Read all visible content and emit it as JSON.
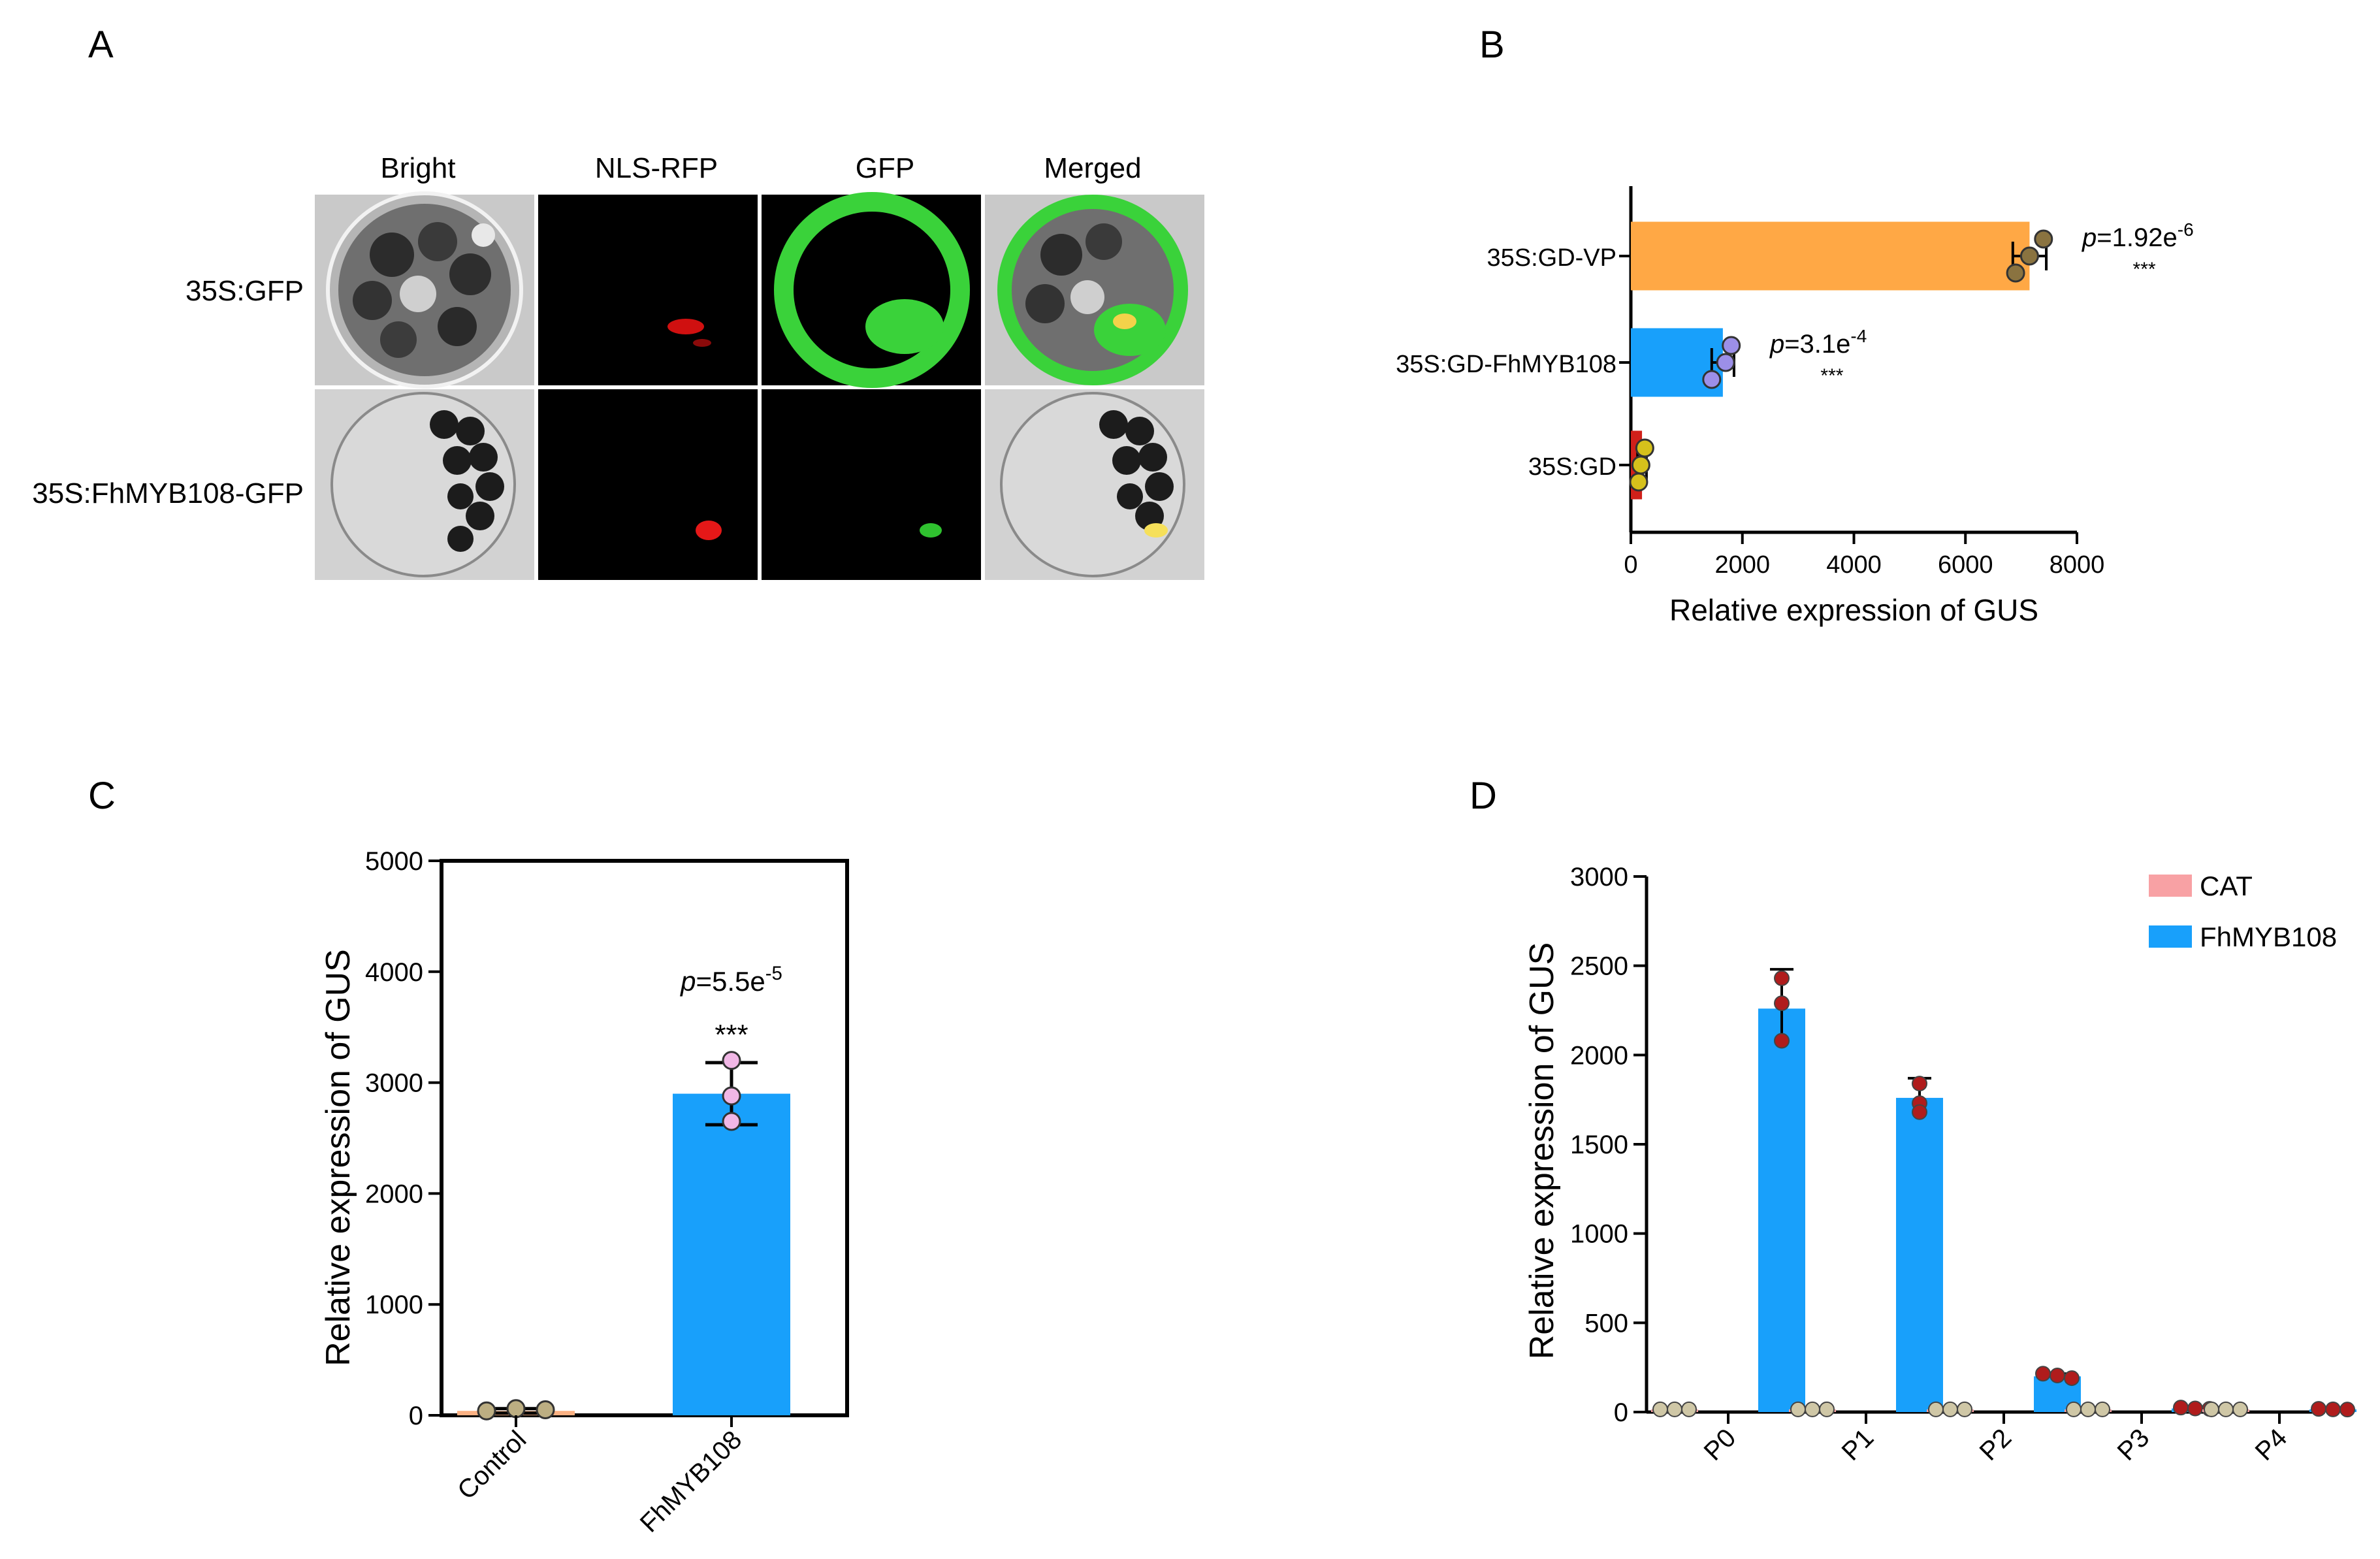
{
  "panels": {
    "A": {
      "label": "A",
      "columns": [
        "Bright",
        "NLS-RFP",
        "GFP",
        "Merged"
      ],
      "rows": [
        "35S:GFP",
        "35S:FhMYB108-GFP"
      ]
    }
  },
  "chart_data": [
    {
      "panel": "B",
      "type": "bar",
      "orientation": "horizontal",
      "title": "",
      "xlabel": "Relative expression of GUS",
      "ylabel": "",
      "categories": [
        "35S:GD-VP",
        "35S:GD-FhMYB108",
        "35S:GD"
      ],
      "values": [
        7150,
        1650,
        200
      ],
      "errors": [
        300,
        200,
        80
      ],
      "points": [
        [
          7400,
          7150,
          6900
        ],
        [
          1800,
          1700,
          1450
        ],
        [
          250,
          180,
          140
        ]
      ],
      "colors": [
        "#FFA845",
        "#18A0FB",
        "#D0201A"
      ],
      "point_colors": [
        "#8A7340",
        "#9C8FE8",
        "#D6C11B"
      ],
      "xlim": [
        0,
        8000
      ],
      "xticks": [
        0,
        2000,
        4000,
        6000,
        8000
      ],
      "pvalues": [
        {
          "prefix": "p",
          "text": "=1.92e",
          "exp": "-6",
          "stars": "***"
        },
        {
          "prefix": "p",
          "text": "=3.1e",
          "exp": "-4",
          "stars": "***"
        },
        null
      ],
      "grid": false
    },
    {
      "panel": "C",
      "type": "bar",
      "title": "",
      "xlabel": "",
      "ylabel": "Relative expression of GUS",
      "categories": [
        "Control",
        "FhMYB108"
      ],
      "values": [
        40,
        2900
      ],
      "errors": [
        20,
        280
      ],
      "points": [
        [
          40,
          60,
          50
        ],
        [
          3200,
          2880,
          2650
        ]
      ],
      "colors": [
        "#FBB183",
        "#18A0FB"
      ],
      "point_colors": [
        "#BCAE82",
        "#F1B7E6"
      ],
      "ylim": [
        0,
        5000
      ],
      "yticks": [
        0,
        1000,
        2000,
        3000,
        4000,
        5000
      ],
      "pvalues": [
        null,
        {
          "prefix": "p",
          "text": "=5.5e",
          "exp": "-5",
          "stars": "***"
        }
      ],
      "grid": false
    },
    {
      "panel": "D",
      "type": "bar",
      "title": "",
      "xlabel": "",
      "ylabel": "Relative expression of GUS",
      "categories": [
        "P0",
        "P1",
        "P2",
        "P3",
        "P4"
      ],
      "series": [
        {
          "name": "CAT",
          "color": "#F8A1A4",
          "point_color": "#CFC7A6",
          "values": [
            15,
            15,
            15,
            15,
            15
          ],
          "errors": [
            5,
            5,
            5,
            5,
            5
          ],
          "points": [
            [
              15,
              15,
              15
            ],
            [
              15,
              15,
              15
            ],
            [
              15,
              15,
              15
            ],
            [
              15,
              15,
              15
            ],
            [
              15,
              15,
              15
            ]
          ]
        },
        {
          "name": "FhMYB108",
          "color": "#18A0FB",
          "point_color": "#B01C1C",
          "values": [
            2260,
            1760,
            200,
            20,
            15
          ],
          "errors": [
            220,
            110,
            15,
            5,
            5
          ],
          "points": [
            [
              2430,
              2290,
              2080
            ],
            [
              1840,
              1730,
              1680
            ],
            [
              215,
              205,
              190
            ],
            [
              25,
              20,
              18
            ],
            [
              18,
              15,
              14
            ]
          ]
        }
      ],
      "ylim": [
        0,
        3000
      ],
      "yticks": [
        0,
        500,
        1000,
        1500,
        2000,
        2500,
        3000
      ],
      "legend": "top-right",
      "grid": false
    }
  ]
}
